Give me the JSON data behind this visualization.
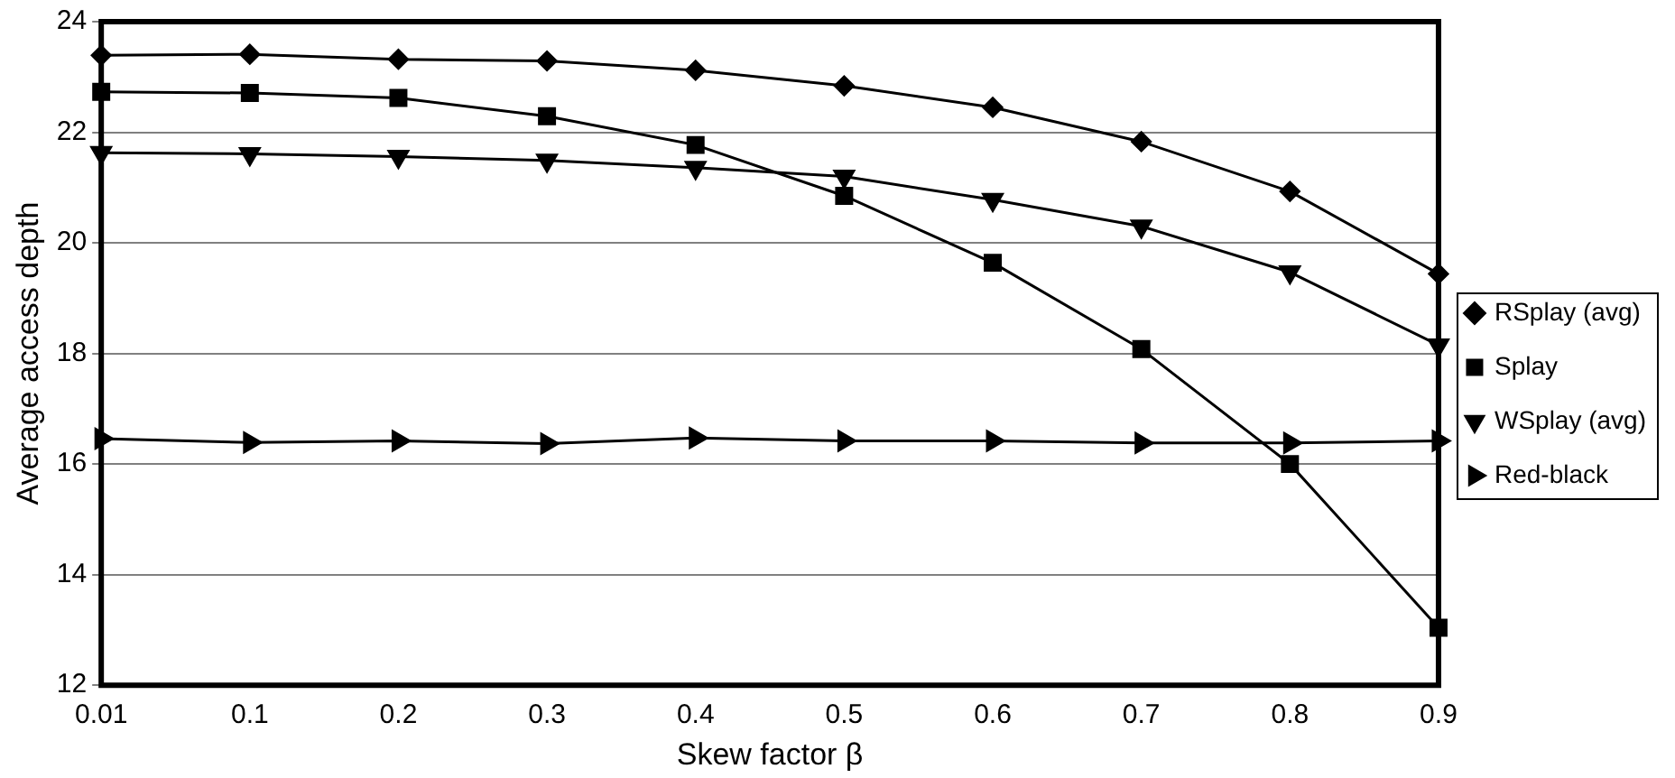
{
  "chart_data": {
    "type": "line",
    "xlabel": "Skew factor β",
    "ylabel": "Average access depth",
    "categories": [
      "0.01",
      "0.1",
      "0.2",
      "0.3",
      "0.4",
      "0.5",
      "0.6",
      "0.7",
      "0.8",
      "0.9"
    ],
    "series": [
      {
        "name": "RSplay (avg)",
        "color": "#000000",
        "marker": "diamond",
        "values": [
          23.39,
          23.41,
          23.32,
          23.29,
          23.12,
          22.84,
          22.45,
          21.83,
          20.93,
          19.44
        ]
      },
      {
        "name": "Splay",
        "color": "#000000",
        "marker": "square",
        "values": [
          22.73,
          22.71,
          22.62,
          22.29,
          21.77,
          20.85,
          19.64,
          18.08,
          16.0,
          13.04
        ]
      },
      {
        "name": "WSplay (avg)",
        "color": "#000000",
        "marker": "triangle-down",
        "values": [
          21.63,
          21.61,
          21.56,
          21.49,
          21.36,
          21.2,
          20.78,
          20.3,
          19.47,
          18.15
        ]
      },
      {
        "name": "Red-black",
        "color": "#000000",
        "marker": "triangle-right",
        "values": [
          16.46,
          16.39,
          16.42,
          16.37,
          16.47,
          16.42,
          16.42,
          16.38,
          16.38,
          16.42
        ]
      }
    ],
    "ylim": [
      12,
      24
    ],
    "yticks": [
      12,
      14,
      16,
      18,
      20,
      22,
      24
    ],
    "grid": "y",
    "legend": "right",
    "line_style": "solid"
  }
}
